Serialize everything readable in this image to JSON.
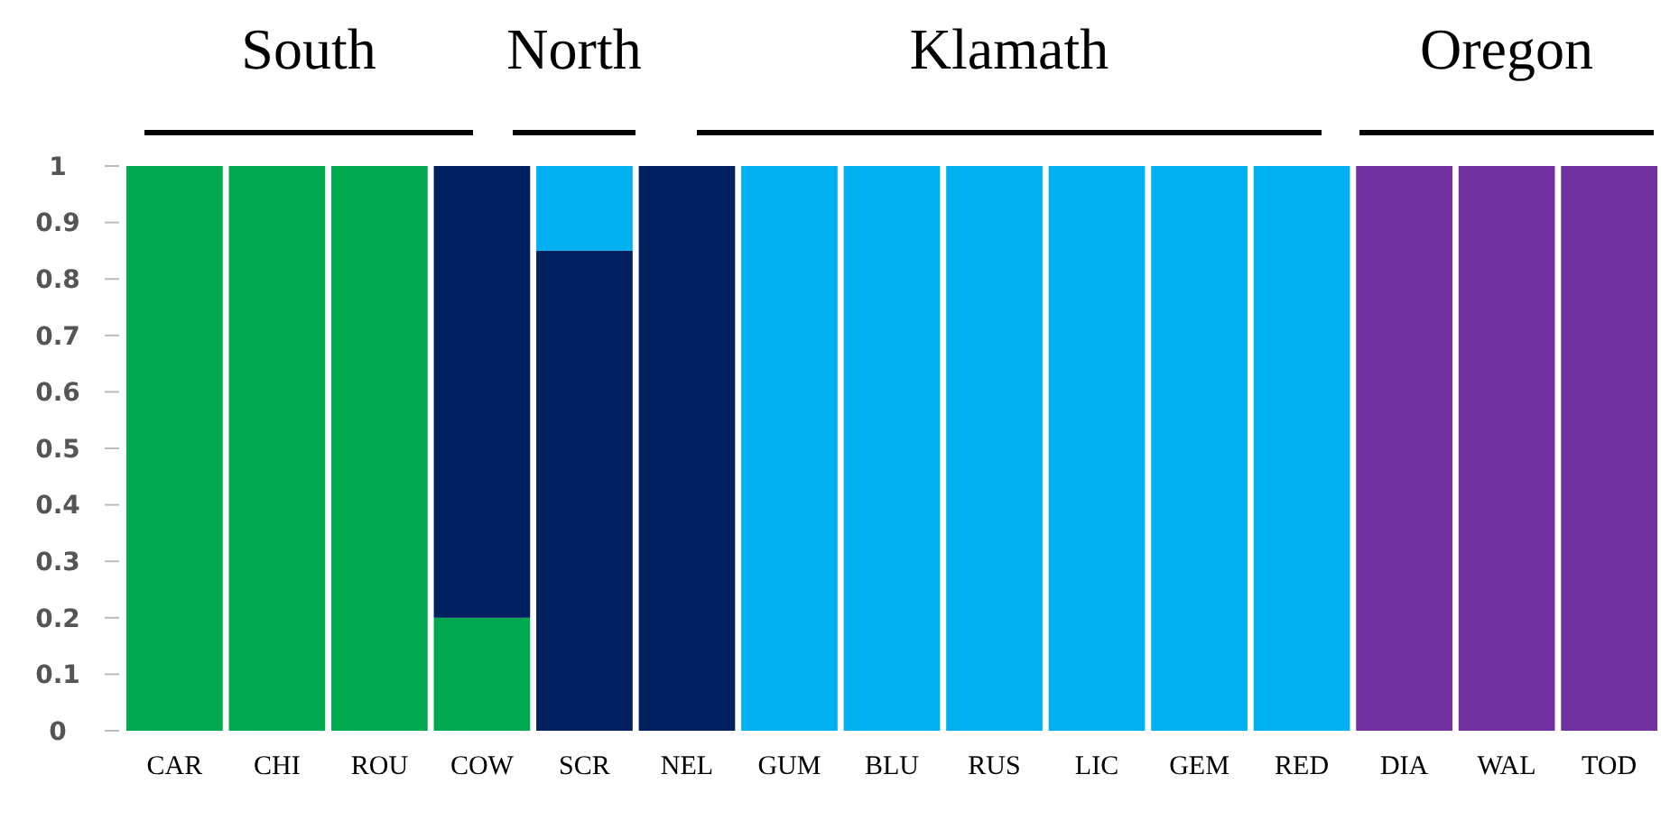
{
  "chart_data": {
    "type": "bar",
    "stacked": true,
    "categories": [
      "CAR",
      "CHI",
      "ROU",
      "COW",
      "SCR",
      "NEL",
      "GUM",
      "BLU",
      "RUS",
      "LIC",
      "GEM",
      "RED",
      "DIA",
      "WAL",
      "TOD"
    ],
    "series": [
      {
        "color": "#00a94f",
        "values": [
          1,
          1,
          1,
          0.2,
          0,
          0,
          0,
          0,
          0,
          0,
          0,
          0,
          0,
          0,
          0
        ]
      },
      {
        "color": "#002060",
        "values": [
          0,
          0,
          0,
          0.8,
          0.85,
          1,
          0,
          0,
          0,
          0,
          0,
          0,
          0,
          0,
          0
        ]
      },
      {
        "color": "#00b0f0",
        "values": [
          0,
          0,
          0,
          0,
          0.15,
          0,
          1,
          1,
          1,
          1,
          1,
          1,
          0,
          0,
          0
        ]
      },
      {
        "color": "#7030a0",
        "values": [
          0,
          0,
          0,
          0,
          0,
          0,
          0,
          0,
          0,
          0,
          0,
          0,
          1,
          1,
          1
        ]
      }
    ],
    "ylim": [
      0,
      1
    ],
    "yticks": [
      0,
      0.1,
      0.2,
      0.3,
      0.4,
      0.5,
      0.6,
      0.7,
      0.8,
      0.9,
      1
    ],
    "annotations": [
      "South",
      "North",
      "Klamath",
      "Oregon"
    ]
  }
}
